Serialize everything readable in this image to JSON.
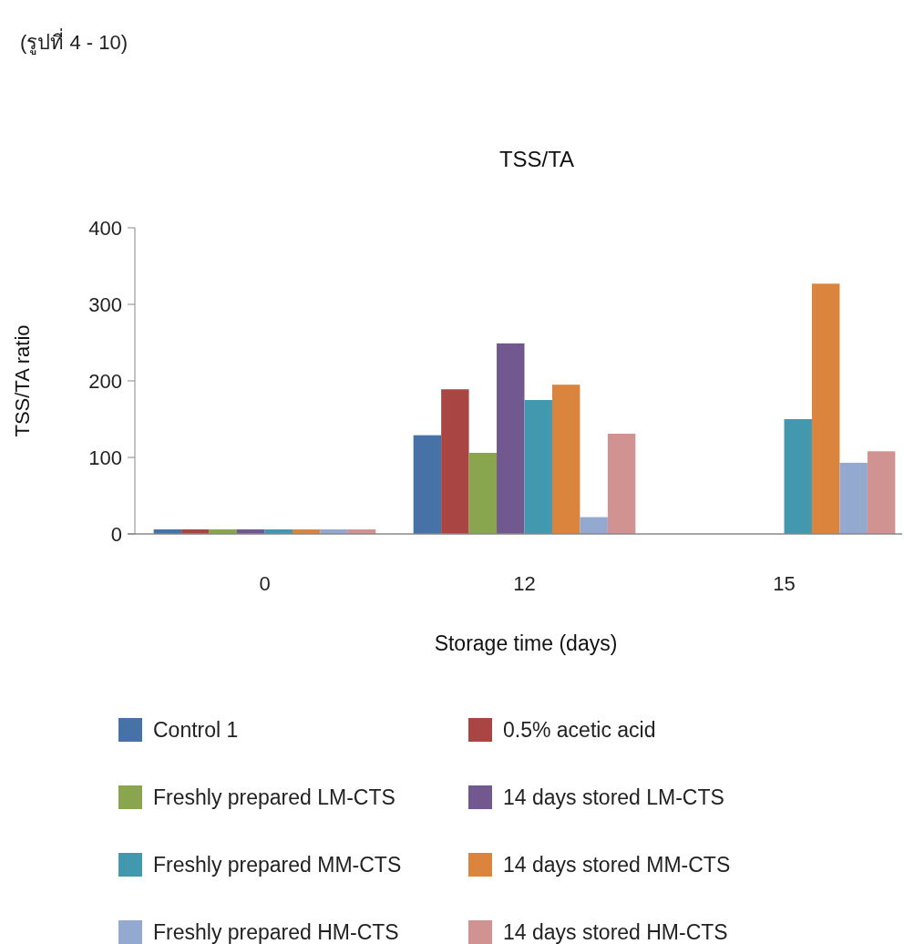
{
  "chart_data": {
    "type": "bar",
    "title": "TSS/TA",
    "xlabel": "Storage time (days)",
    "ylabel": "TSS/TA ratio",
    "annotations": [
      "(รูปที่ 4 - 10)"
    ],
    "categories": [
      "0",
      "12",
      "15"
    ],
    "ylim": [
      0,
      400
    ],
    "yticks": [
      0,
      100,
      200,
      300,
      400
    ],
    "grid": false,
    "legend": "bottom",
    "series": [
      {
        "name": "Control 1",
        "color": "#4672a8",
        "values": [
          6,
          129,
          null
        ]
      },
      {
        "name": "0.5% acetic acid",
        "color": "#a94643",
        "values": [
          6,
          189,
          null
        ]
      },
      {
        "name": "Freshly prepared LM-CTS",
        "color": "#89a54e",
        "values": [
          6,
          106,
          null
        ]
      },
      {
        "name": "14 days stored LM-CTS",
        "color": "#71588f",
        "values": [
          6,
          249,
          null
        ]
      },
      {
        "name": "Freshly prepared MM-CTS",
        "color": "#4298af",
        "values": [
          6,
          175,
          150
        ]
      },
      {
        "name": "14 days stored MM-CTS",
        "color": "#db843d",
        "values": [
          6,
          195,
          327
        ]
      },
      {
        "name": "Freshly prepared HM-CTS",
        "color": "#93a9d0",
        "values": [
          6,
          22,
          93
        ]
      },
      {
        "name": "14 days stored HM-CTS",
        "color": "#d09392",
        "values": [
          6,
          131,
          108
        ]
      }
    ]
  }
}
